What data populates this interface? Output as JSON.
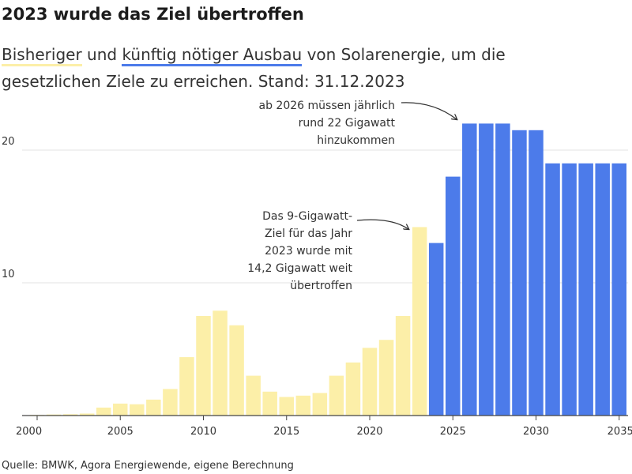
{
  "title": "2023 wurde das Ziel übertroffen",
  "subtitle": {
    "series1": "Bisheriger",
    "connector": "und",
    "series2": "künftig nötiger Ausbau",
    "rest": "von Solarenergie, um die gesetzlichen Ziele zu erreichen. Stand: 31.12.2023"
  },
  "source": "Quelle: BMWK, Agora Energiewende, eigene Berechnung",
  "colors": {
    "historical": "#fcefa8",
    "planned": "#4c7bea",
    "grid": "#e3e3e3",
    "axis": "#444444"
  },
  "chart_data": {
    "type": "bar",
    "categories": [
      "2000",
      "2001",
      "2002",
      "2003",
      "2004",
      "2005",
      "2006",
      "2007",
      "2008",
      "2009",
      "2010",
      "2011",
      "2012",
      "2013",
      "2014",
      "2015",
      "2016",
      "2017",
      "2018",
      "2019",
      "2020",
      "2021",
      "2022",
      "2023",
      "2024",
      "2025",
      "2026",
      "2027",
      "2028",
      "2029",
      "2030",
      "2031",
      "2032",
      "2033",
      "2034",
      "2035"
    ],
    "series": [
      {
        "name": "Bisheriger",
        "color": "#fcefa8",
        "values": [
          0.05,
          0.08,
          0.1,
          0.15,
          0.6,
          0.9,
          0.85,
          1.2,
          2.0,
          4.4,
          7.5,
          7.9,
          6.8,
          3.0,
          1.8,
          1.4,
          1.5,
          1.7,
          3.0,
          4.0,
          5.1,
          5.7,
          7.5,
          14.2,
          null,
          null,
          null,
          null,
          null,
          null,
          null,
          null,
          null,
          null,
          null,
          null
        ]
      },
      {
        "name": "künftig nötiger Ausbau",
        "color": "#4c7bea",
        "values": [
          null,
          null,
          null,
          null,
          null,
          null,
          null,
          null,
          null,
          null,
          null,
          null,
          null,
          null,
          null,
          null,
          null,
          null,
          null,
          null,
          null,
          null,
          null,
          null,
          13,
          18,
          22,
          22,
          22,
          21.5,
          21.5,
          19,
          19,
          19,
          19,
          19
        ]
      }
    ],
    "x_ticks": [
      "2000",
      "2005",
      "2010",
      "2015",
      "2020",
      "2025",
      "2030",
      "2035"
    ],
    "y_ticks": [
      "10",
      "20"
    ],
    "ylim": [
      0,
      25
    ],
    "grid": true,
    "annotations": [
      {
        "lines": [
          "ab 2026 müssen jährlich",
          "rund 22 Gigawatt",
          "hinzukommen"
        ]
      },
      {
        "lines": [
          "Das 9-Gigawatt-",
          "Ziel für das Jahr",
          "2023 wurde mit",
          "14,2 Gigawatt weit",
          "übertroffen"
        ]
      }
    ]
  }
}
